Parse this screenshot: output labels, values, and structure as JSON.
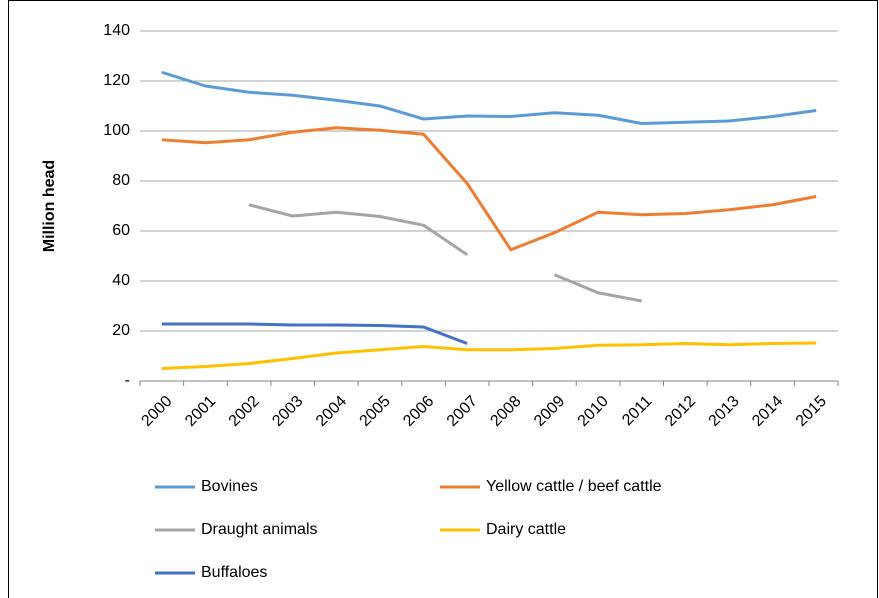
{
  "chart_data": {
    "type": "line",
    "y_label": "Million head",
    "categories": [
      "2000",
      "2001",
      "2002",
      "2003",
      "2004",
      "2005",
      "2006",
      "2007",
      "2008",
      "2009",
      "2010",
      "2011",
      "2012",
      "2013",
      "2014",
      "2015"
    ],
    "series": [
      {
        "name": "Bovines",
        "color": "#5b9bd5",
        "values": [
          123.5,
          118,
          115.5,
          114.3,
          112.3,
          110,
          104.8,
          106,
          105.8,
          107.3,
          106.3,
          103,
          103.5,
          104,
          105.8,
          108.2
        ]
      },
      {
        "name": "Yellow cattle / beef cattle",
        "color": "#ed7d31",
        "values": [
          96.5,
          95.3,
          96.5,
          99.5,
          101.3,
          100.3,
          98.7,
          79,
          52.5,
          59.3,
          67.5,
          66.5,
          67,
          68.5,
          70.5,
          73.8
        ]
      },
      {
        "name": "Draught animals",
        "color": "#a5a5a5",
        "values": [
          null,
          null,
          70.5,
          66,
          67.5,
          65.8,
          62.3,
          50.5,
          null,
          42.5,
          35.3,
          32,
          null,
          null,
          null,
          null
        ]
      },
      {
        "name": "Dairy cattle",
        "color": "#ffc000",
        "values": [
          5,
          5.8,
          7,
          9,
          11.2,
          12.5,
          13.8,
          12.5,
          12.5,
          13,
          14.3,
          14.5,
          15,
          14.5,
          15,
          15.2
        ]
      },
      {
        "name": "Buffaloes",
        "color": "#4472c4",
        "values": [
          22.8,
          22.8,
          22.8,
          22.4,
          22.4,
          22.2,
          21.6,
          15,
          null,
          null,
          null,
          null,
          null,
          null,
          null,
          null
        ]
      }
    ],
    "ylim": [
      0,
      140
    ],
    "yticks": [
      {
        "value": 0,
        "label": "-"
      },
      20,
      40,
      60,
      80,
      100,
      120,
      140
    ],
    "grid": true
  }
}
